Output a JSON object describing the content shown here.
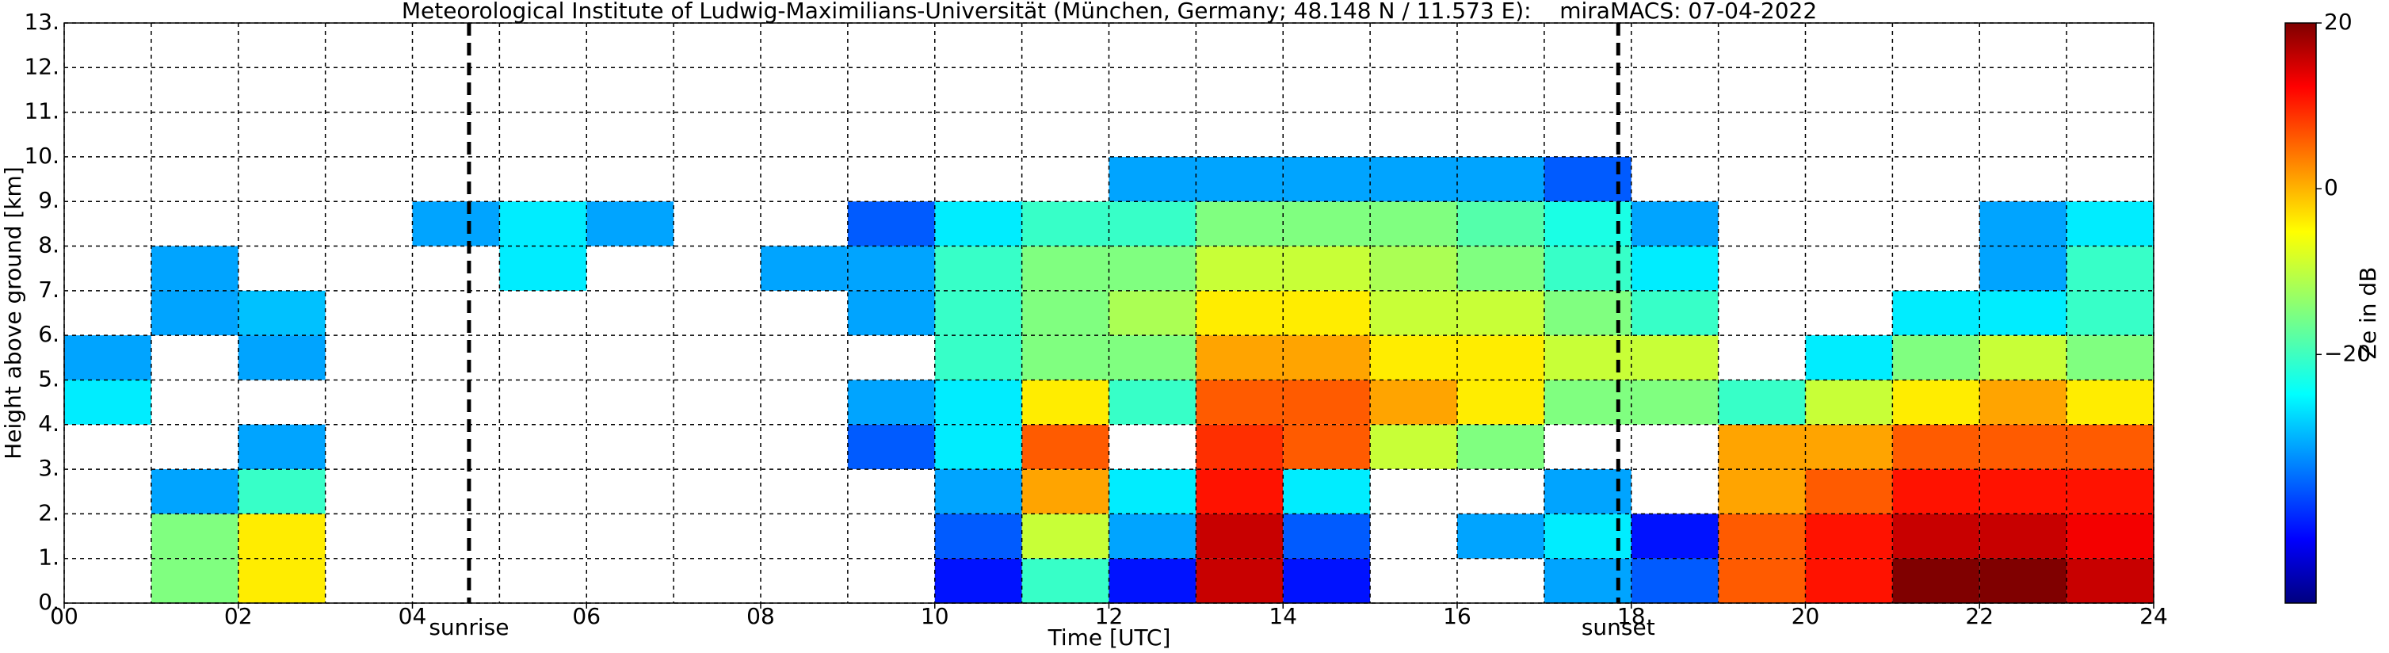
{
  "chart_data": {
    "type": "heatmap",
    "title": "Meteorological Institute of Ludwig-Maximilians-Universität (München, Germany; 48.148 N / 11.573 E):    miraMACS: 07-04-2022",
    "x_label": "Time [UTC]",
    "y_label": "Height above ground [km]",
    "colorbar_label": "Ze in dB",
    "colormap": "jet",
    "xlim": [
      0,
      24
    ],
    "ylim": [
      0,
      13
    ],
    "clim": [
      -50,
      20
    ],
    "xticks": [
      {
        "value": 0,
        "label": "00"
      },
      {
        "value": 2,
        "label": "02"
      },
      {
        "value": 4,
        "label": "04"
      },
      {
        "value": 6,
        "label": "06"
      },
      {
        "value": 8,
        "label": "08"
      },
      {
        "value": 10,
        "label": "10"
      },
      {
        "value": 12,
        "label": "12"
      },
      {
        "value": 14,
        "label": "14"
      },
      {
        "value": 16,
        "label": "16"
      },
      {
        "value": 18,
        "label": "18"
      },
      {
        "value": 20,
        "label": "20"
      },
      {
        "value": 22,
        "label": "22"
      },
      {
        "value": 24,
        "label": "24"
      }
    ],
    "xminor": [
      1,
      3,
      5,
      7,
      9,
      11,
      13,
      15,
      17,
      19,
      21,
      23
    ],
    "yticks": [
      {
        "value": 0,
        "label": "0."
      },
      {
        "value": 1,
        "label": "1."
      },
      {
        "value": 2,
        "label": "2."
      },
      {
        "value": 3,
        "label": "3."
      },
      {
        "value": 4,
        "label": "4."
      },
      {
        "value": 5,
        "label": "5."
      },
      {
        "value": 6,
        "label": "6."
      },
      {
        "value": 7,
        "label": "7."
      },
      {
        "value": 8,
        "label": "8."
      },
      {
        "value": 9,
        "label": "9."
      },
      {
        "value": 10,
        "label": "10."
      },
      {
        "value": 11,
        "label": "11."
      },
      {
        "value": 12,
        "label": "12."
      },
      {
        "value": 13,
        "label": "13."
      }
    ],
    "cticks": [
      {
        "value": 20,
        "label": "20"
      },
      0,
      {
        "value": -20,
        "label": "−20"
      }
    ],
    "grid": true,
    "annotations": [
      {
        "x": 4.65,
        "label": "sunrise"
      },
      {
        "x": 17.85,
        "label": "sunset"
      }
    ],
    "x_bins": [
      0,
      1,
      2,
      3,
      4,
      5,
      6,
      7,
      8,
      9,
      10,
      11,
      12,
      13,
      14,
      15,
      16,
      17,
      18,
      19,
      20,
      21,
      22,
      23,
      24
    ],
    "y_bins": [
      0,
      1,
      2,
      3,
      4,
      5,
      6,
      7,
      8,
      9,
      10
    ],
    "z": [
      [
        null,
        -15,
        -5,
        null,
        null,
        null,
        null,
        null,
        null,
        null,
        -40,
        -20,
        -40,
        15,
        -40,
        null,
        null,
        -30,
        -35,
        5,
        10,
        20,
        20,
        15
      ],
      [
        null,
        -15,
        -5,
        null,
        null,
        null,
        null,
        null,
        null,
        null,
        -35,
        -10,
        -30,
        15,
        -35,
        null,
        -30,
        -25,
        -40,
        5,
        10,
        15,
        15,
        12
      ],
      [
        null,
        -30,
        -20,
        null,
        null,
        null,
        null,
        null,
        null,
        null,
        -30,
        0,
        -25,
        10,
        -25,
        null,
        null,
        -30,
        null,
        0,
        5,
        10,
        10,
        10
      ],
      [
        null,
        null,
        -30,
        null,
        null,
        null,
        null,
        null,
        null,
        -35,
        -25,
        5,
        null,
        8,
        5,
        -10,
        -15,
        null,
        null,
        0,
        0,
        5,
        5,
        5
      ],
      [
        -25,
        null,
        null,
        null,
        null,
        null,
        null,
        null,
        null,
        -30,
        -25,
        -5,
        -20,
        5,
        5,
        0,
        -5,
        -15,
        -15,
        -20,
        -10,
        -5,
        0,
        -5
      ],
      [
        -30,
        null,
        -30,
        null,
        null,
        null,
        null,
        null,
        null,
        null,
        -20,
        -15,
        -15,
        0,
        0,
        -5,
        -5,
        -10,
        -10,
        null,
        -25,
        -15,
        -10,
        -15
      ],
      [
        null,
        -30,
        -28,
        null,
        null,
        null,
        null,
        null,
        null,
        -30,
        -20,
        -15,
        -12,
        -5,
        -5,
        -10,
        -10,
        -15,
        -20,
        null,
        null,
        -25,
        -25,
        -20
      ],
      [
        null,
        -30,
        null,
        null,
        null,
        -25,
        null,
        null,
        -30,
        -30,
        -20,
        -15,
        -15,
        -10,
        -10,
        -12,
        -15,
        -20,
        -25,
        null,
        null,
        null,
        -30,
        -20
      ],
      [
        null,
        null,
        null,
        null,
        -30,
        -25,
        -30,
        null,
        null,
        -35,
        -25,
        -20,
        -20,
        -15,
        -15,
        -15,
        -18,
        -22,
        -30,
        null,
        null,
        null,
        -30,
        -25
      ],
      [
        null,
        null,
        null,
        null,
        null,
        null,
        null,
        null,
        null,
        null,
        null,
        null,
        -30,
        -30,
        -30,
        -30,
        -30,
        -35,
        null,
        null,
        null,
        null,
        null,
        null
      ]
    ]
  }
}
